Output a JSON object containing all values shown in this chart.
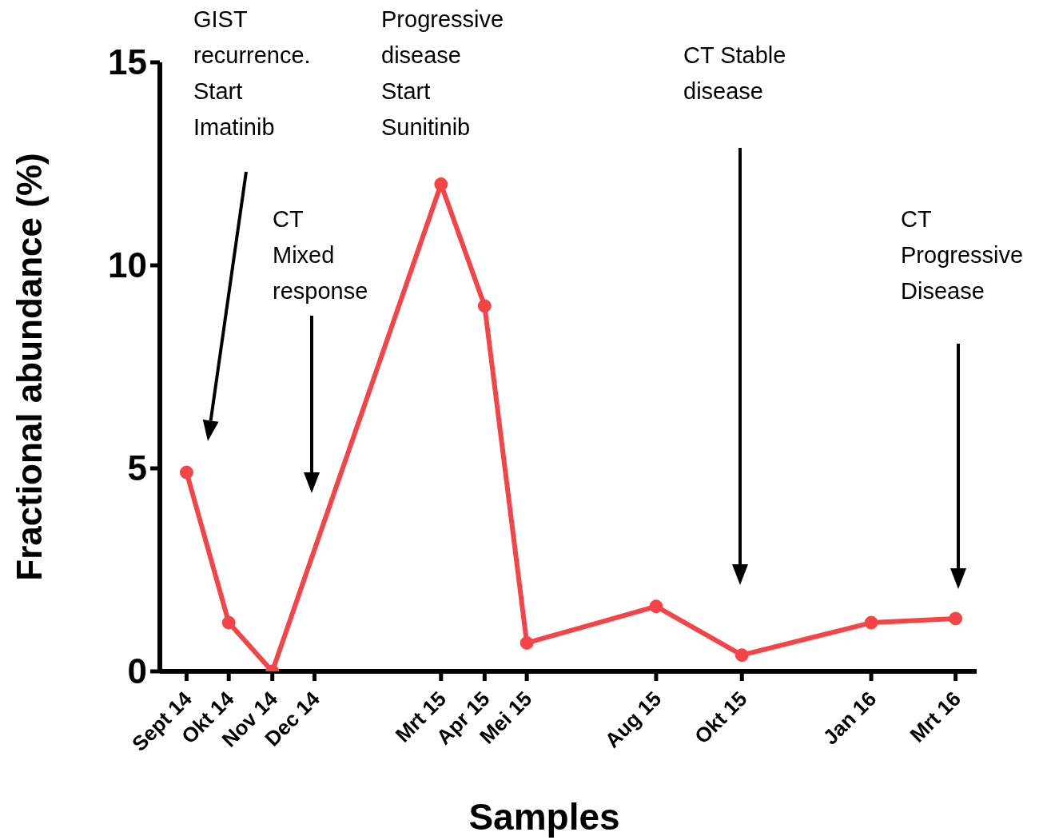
{
  "chart_data": {
    "type": "line",
    "xlabel": "Samples",
    "ylabel": "Fractional abundance (%)",
    "x": [
      "2014-09",
      "2014-10",
      "2014-11",
      "2015-03",
      "2015-04",
      "2015-05",
      "2015-08",
      "2015-10",
      "2016-01",
      "2016-03"
    ],
    "series": [
      {
        "color": "#f44448",
        "values": [
          4.9,
          1.2,
          0,
          12,
          9,
          0.7,
          1.6,
          0.4,
          1.2,
          1.3
        ]
      }
    ],
    "xlim": [
      "2014-08-13",
      "2016-03-16"
    ],
    "xticks": [
      {
        "value": "2014-09",
        "label": "Sept 14"
      },
      {
        "value": "2014-10",
        "label": "Okt 14"
      },
      {
        "value": "2014-11",
        "label": "Nov 14"
      },
      {
        "value": "2014-12",
        "label": "Dec 14"
      },
      {
        "value": "2015-03",
        "label": "Mrt 15"
      },
      {
        "value": "2015-04",
        "label": "Apr 15"
      },
      {
        "value": "2015-05",
        "label": "Mei 15"
      },
      {
        "value": "2015-08",
        "label": "Aug 15"
      },
      {
        "value": "2015-10",
        "label": "Okt 15"
      },
      {
        "value": "2016-01",
        "label": "Jan 16"
      },
      {
        "value": "2016-03",
        "label": "Mrt 16"
      }
    ],
    "ylim": [
      0,
      15
    ],
    "yticks": [
      0,
      5,
      10,
      15
    ],
    "marker": "circle",
    "line_style": "solid",
    "annotations": [
      "GIST\nrecurrence.\nStart\nImatinib",
      "CT\nMixed\nresponse",
      "Progressive\ndisease\nStart\nSunitinib",
      "CT Stable\ndisease",
      "CT\nProgressive\nDisease"
    ]
  }
}
